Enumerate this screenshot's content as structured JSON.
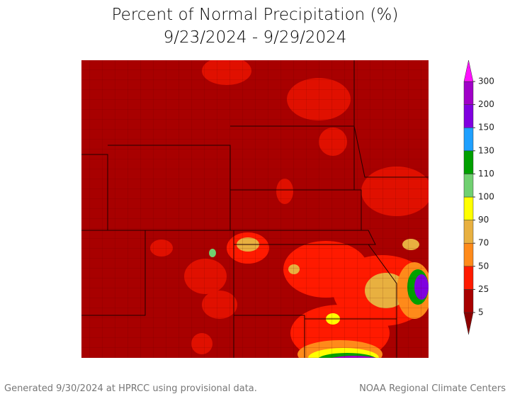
{
  "title": [
    "Percent of Normal Precipitation (%)",
    "9/23/2024 - 9/29/2024"
  ],
  "colorbar": {
    "ticks": [
      5,
      25,
      50,
      70,
      90,
      100,
      110,
      130,
      150,
      200,
      300
    ],
    "colors": [
      "#8c0000",
      "#a80000",
      "#ff1a00",
      "#ff8a1a",
      "#e8b040",
      "#ffff00",
      "#70d070",
      "#00a000",
      "#1ea0ff",
      "#8000e0",
      "#a000c8",
      "#ff10ff"
    ]
  },
  "footer": {
    "left": "Generated 9/30/2024 at HPRCC using provisional data.",
    "right": "NOAA Regional Climate Centers"
  }
}
